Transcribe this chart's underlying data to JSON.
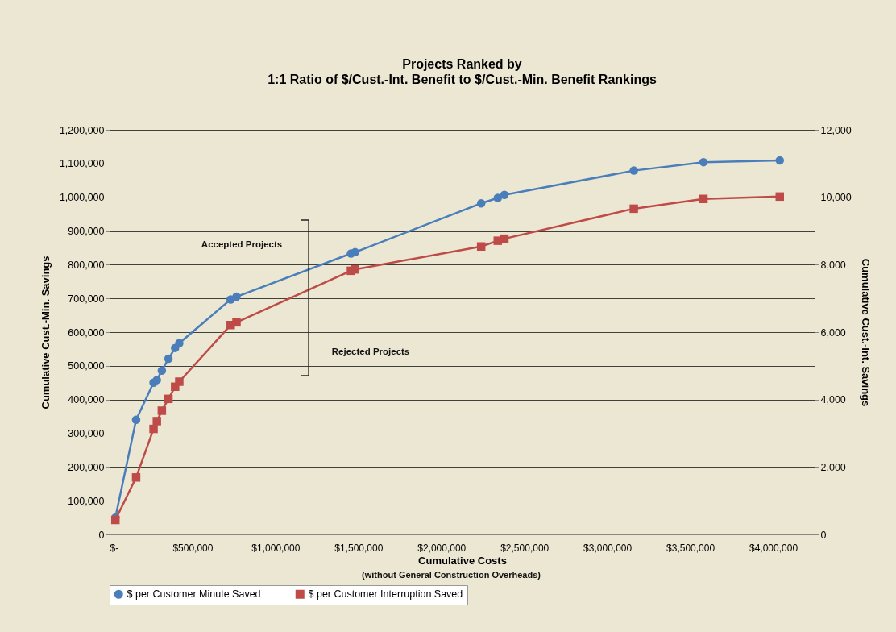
{
  "chart_data": {
    "type": "line",
    "title": "Projects Ranked by",
    "subtitle": "1:1 Ratio of $/Cust.-Int. Benefit to $/Cust.-Min. Benefit Rankings",
    "xlabel": "Cumulative Costs",
    "ylabel": "Cumulative Cust.-Min. Savings",
    "y2label": "Cumulative Cust.-Int. Savings",
    "annotations": [
      "Accepted Projects",
      "Rejected Projects",
      "(without General Construction Overheads)"
    ],
    "x": [
      35000,
      160000,
      265000,
      285000,
      315000,
      355000,
      395000,
      420000,
      730000,
      765000,
      1455000,
      1480000,
      2240000,
      2340000,
      2380000,
      3160000,
      3580000,
      4040000
    ],
    "series": [
      {
        "name": "$ per Customer Minute Saved",
        "color": "#4a7ebb",
        "marker": "circle",
        "values": [
          50000,
          340000,
          450000,
          458000,
          486000,
          521000,
          553000,
          567000,
          697000,
          705000,
          833000,
          837000,
          982000,
          998000,
          1007000,
          1079000,
          1104000,
          1109000
        ]
      },
      {
        "name": "$ per Customer Interruption Saved",
        "color": "#be4b48",
        "marker": "square",
        "axis": "y2",
        "values": [
          430,
          1690,
          3130,
          3360,
          3670,
          4020,
          4380,
          4530,
          6210,
          6290,
          7820,
          7860,
          8540,
          8710,
          8770,
          9660,
          9950,
          10020
        ]
      }
    ],
    "xlim": [
      0,
      4250000
    ],
    "xticks": [
      {
        "value": 0,
        "label": "$-"
      },
      {
        "value": 500000,
        "label": "$500,000"
      },
      {
        "value": 1000000,
        "label": "$1,000,000"
      },
      {
        "value": 1500000,
        "label": "$1,500,000"
      },
      {
        "value": 2000000,
        "label": "$2,000,000"
      },
      {
        "value": 2500000,
        "label": "$2,500,000"
      },
      {
        "value": 3000000,
        "label": "$3,000,000"
      },
      {
        "value": 3500000,
        "label": "$3,500,000"
      },
      {
        "value": 4000000,
        "label": "$4,000,000"
      }
    ],
    "ylim": [
      0,
      1200000
    ],
    "yticks": [
      0,
      {
        "value": 100000,
        "label": "100,000"
      },
      {
        "value": 200000,
        "label": "200,000"
      },
      {
        "value": 300000,
        "label": "300,000"
      },
      {
        "value": 400000,
        "label": "400,000"
      },
      {
        "value": 500000,
        "label": "500,000"
      },
      {
        "value": 600000,
        "label": "600,000"
      },
      {
        "value": 700000,
        "label": "700,000"
      },
      {
        "value": 800000,
        "label": "800,000"
      },
      {
        "value": 900000,
        "label": "900,000"
      },
      {
        "value": 1000000,
        "label": "1,000,000"
      },
      {
        "value": 1100000,
        "label": "1,100,000"
      },
      {
        "value": 1200000,
        "label": "1,200,000"
      }
    ],
    "y2lim": [
      0,
      12000
    ],
    "y2ticks": [
      0,
      {
        "value": 2000,
        "label": "2,000"
      },
      {
        "value": 4000,
        "label": "4,000"
      },
      {
        "value": 6000,
        "label": "6,000"
      },
      {
        "value": 8000,
        "label": "8,000"
      },
      {
        "value": 10000,
        "label": "10,000"
      },
      {
        "value": 12000,
        "label": "12,000"
      }
    ],
    "grid": "y",
    "legend": "bottom",
    "line_style": "solid"
  }
}
